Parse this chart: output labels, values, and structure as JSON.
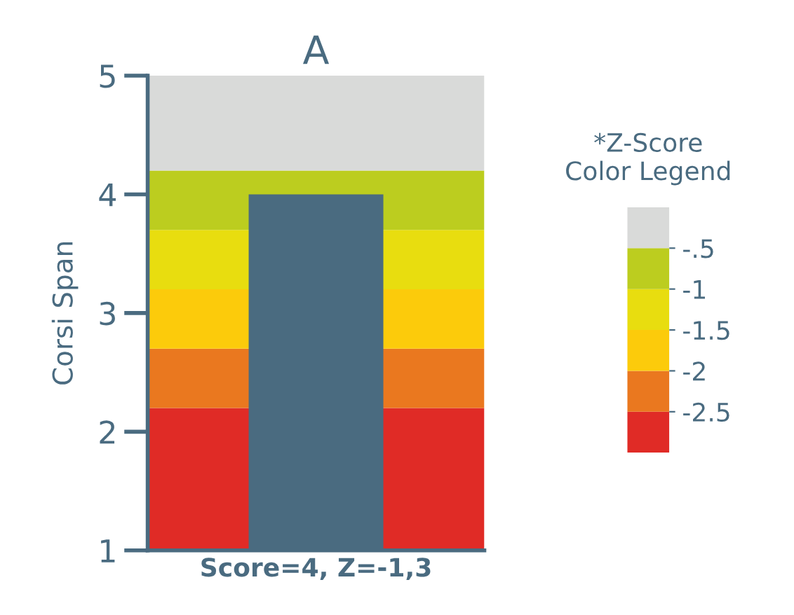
{
  "chart_data": {
    "type": "bar",
    "title": "A",
    "ylabel": "Corsi Span",
    "categories": [
      "Score=4, Z=-1,3"
    ],
    "values": [
      4
    ],
    "color": "#4a6b80",
    "ylim": [
      1,
      5
    ],
    "yticks": [
      1,
      2,
      3,
      4,
      5
    ],
    "grid": false,
    "bands": [
      {
        "axis": "y",
        "from": 1,
        "to": 2.2,
        "color": "#e02b26"
      },
      {
        "axis": "y",
        "from": 2.2,
        "to": 2.7,
        "color": "#ea781f"
      },
      {
        "axis": "y",
        "from": 2.7,
        "to": 3.2,
        "color": "#fccb0b"
      },
      {
        "axis": "y",
        "from": 3.2,
        "to": 3.7,
        "color": "#e8dd0f"
      },
      {
        "axis": "y",
        "from": 3.7,
        "to": 4.2,
        "color": "#bccd1f"
      },
      {
        "axis": "y",
        "from": 4.2,
        "to": 5,
        "color": "#d9dad9"
      }
    ],
    "clabel": "*Z-Score\nColor Legend",
    "clim": [
      -3,
      0
    ],
    "cticks": [
      {
        "value": -2.5,
        "label": "-2.5"
      },
      {
        "value": -2,
        "label": "-2"
      },
      {
        "value": -1.5,
        "label": "-1.5"
      },
      {
        "value": -1,
        "label": "-1"
      },
      {
        "value": -0.5,
        "label": "-.5"
      }
    ]
  }
}
